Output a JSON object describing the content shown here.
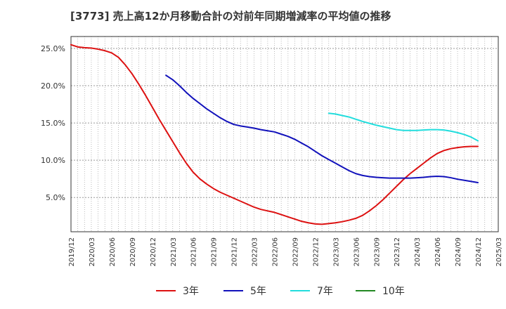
{
  "chart_data": {
    "type": "line",
    "title": "[3773]  売上高12か月移動合計の対前年同期増減率の平均値の推移",
    "xlabel": "",
    "ylabel": "",
    "x_ticks": [
      "2019/12",
      "2020/03",
      "2020/06",
      "2020/09",
      "2020/12",
      "2021/03",
      "2021/06",
      "2021/09",
      "2021/12",
      "2022/03",
      "2022/06",
      "2022/09",
      "2022/12",
      "2023/03",
      "2023/06",
      "2023/09",
      "2023/12",
      "2024/03",
      "2024/06",
      "2024/09",
      "2024/12",
      "2025/03"
    ],
    "y_ticks": [
      "5.0%",
      "10.0%",
      "15.0%",
      "20.0%",
      "25.0%"
    ],
    "y_tick_values": [
      5,
      10,
      15,
      20,
      25
    ],
    "ylim": [
      0.4,
      26.6
    ],
    "xlim": [
      "2019/12",
      "2025/03"
    ],
    "grid": true,
    "legend_position": "bottom",
    "series": [
      {
        "name": "3年",
        "color": "#dd1111",
        "points": [
          [
            "2019/12",
            25.5
          ],
          [
            "2020/01",
            25.2
          ],
          [
            "2020/02",
            25.1
          ],
          [
            "2020/03",
            25.05
          ],
          [
            "2020/04",
            24.9
          ],
          [
            "2020/05",
            24.7
          ],
          [
            "2020/06",
            24.4
          ],
          [
            "2020/07",
            23.8
          ],
          [
            "2020/08",
            22.8
          ],
          [
            "2020/09",
            21.6
          ],
          [
            "2020/10",
            20.2
          ],
          [
            "2020/11",
            18.7
          ],
          [
            "2020/12",
            17.1
          ],
          [
            "2021/01",
            15.5
          ],
          [
            "2021/02",
            14.0
          ],
          [
            "2021/03",
            12.5
          ],
          [
            "2021/04",
            11.0
          ],
          [
            "2021/05",
            9.6
          ],
          [
            "2021/06",
            8.4
          ],
          [
            "2021/07",
            7.5
          ],
          [
            "2021/08",
            6.8
          ],
          [
            "2021/09",
            6.2
          ],
          [
            "2021/10",
            5.7
          ],
          [
            "2021/11",
            5.3
          ],
          [
            "2021/12",
            4.9
          ],
          [
            "2022/01",
            4.5
          ],
          [
            "2022/02",
            4.1
          ],
          [
            "2022/03",
            3.7
          ],
          [
            "2022/04",
            3.4
          ],
          [
            "2022/05",
            3.2
          ],
          [
            "2022/06",
            3.0
          ],
          [
            "2022/07",
            2.7
          ],
          [
            "2022/08",
            2.4
          ],
          [
            "2022/09",
            2.1
          ],
          [
            "2022/10",
            1.8
          ],
          [
            "2022/11",
            1.6
          ],
          [
            "2022/12",
            1.45
          ],
          [
            "2023/01",
            1.4
          ],
          [
            "2023/02",
            1.5
          ],
          [
            "2023/03",
            1.6
          ],
          [
            "2023/04",
            1.75
          ],
          [
            "2023/05",
            1.95
          ],
          [
            "2023/06",
            2.2
          ],
          [
            "2023/07",
            2.6
          ],
          [
            "2023/08",
            3.2
          ],
          [
            "2023/09",
            3.9
          ],
          [
            "2023/10",
            4.7
          ],
          [
            "2023/11",
            5.6
          ],
          [
            "2023/12",
            6.5
          ],
          [
            "2024/01",
            7.4
          ],
          [
            "2024/02",
            8.2
          ],
          [
            "2024/03",
            8.9
          ],
          [
            "2024/04",
            9.6
          ],
          [
            "2024/05",
            10.3
          ],
          [
            "2024/06",
            10.9
          ],
          [
            "2024/07",
            11.3
          ],
          [
            "2024/08",
            11.55
          ],
          [
            "2024/09",
            11.7
          ],
          [
            "2024/10",
            11.8
          ],
          [
            "2024/11",
            11.85
          ],
          [
            "2024/12",
            11.85
          ]
        ]
      },
      {
        "name": "5年",
        "color": "#1111bb",
        "points": [
          [
            "2021/02",
            21.4
          ],
          [
            "2021/03",
            20.8
          ],
          [
            "2021/04",
            20.0
          ],
          [
            "2021/05",
            19.1
          ],
          [
            "2021/06",
            18.3
          ],
          [
            "2021/07",
            17.6
          ],
          [
            "2021/08",
            16.9
          ],
          [
            "2021/09",
            16.3
          ],
          [
            "2021/10",
            15.7
          ],
          [
            "2021/11",
            15.2
          ],
          [
            "2021/12",
            14.8
          ],
          [
            "2022/01",
            14.6
          ],
          [
            "2022/02",
            14.45
          ],
          [
            "2022/03",
            14.3
          ],
          [
            "2022/04",
            14.1
          ],
          [
            "2022/05",
            13.95
          ],
          [
            "2022/06",
            13.8
          ],
          [
            "2022/07",
            13.5
          ],
          [
            "2022/08",
            13.2
          ],
          [
            "2022/09",
            12.8
          ],
          [
            "2022/10",
            12.3
          ],
          [
            "2022/11",
            11.8
          ],
          [
            "2022/12",
            11.2
          ],
          [
            "2023/01",
            10.6
          ],
          [
            "2023/02",
            10.1
          ],
          [
            "2023/03",
            9.6
          ],
          [
            "2023/04",
            9.1
          ],
          [
            "2023/05",
            8.6
          ],
          [
            "2023/06",
            8.2
          ],
          [
            "2023/07",
            7.95
          ],
          [
            "2023/08",
            7.8
          ],
          [
            "2023/09",
            7.7
          ],
          [
            "2023/10",
            7.65
          ],
          [
            "2023/11",
            7.6
          ],
          [
            "2023/12",
            7.6
          ],
          [
            "2024/01",
            7.6
          ],
          [
            "2024/02",
            7.6
          ],
          [
            "2024/03",
            7.65
          ],
          [
            "2024/04",
            7.7
          ],
          [
            "2024/05",
            7.8
          ],
          [
            "2024/06",
            7.85
          ],
          [
            "2024/07",
            7.8
          ],
          [
            "2024/08",
            7.65
          ],
          [
            "2024/09",
            7.45
          ],
          [
            "2024/10",
            7.3
          ],
          [
            "2024/11",
            7.15
          ],
          [
            "2024/12",
            7.0
          ]
        ]
      },
      {
        "name": "7年",
        "color": "#22dddd",
        "points": [
          [
            "2023/02",
            16.3
          ],
          [
            "2023/03",
            16.2
          ],
          [
            "2023/04",
            16.0
          ],
          [
            "2023/05",
            15.8
          ],
          [
            "2023/06",
            15.5
          ],
          [
            "2023/07",
            15.2
          ],
          [
            "2023/08",
            14.95
          ],
          [
            "2023/09",
            14.7
          ],
          [
            "2023/10",
            14.5
          ],
          [
            "2023/11",
            14.3
          ],
          [
            "2023/12",
            14.1
          ],
          [
            "2024/01",
            14.0
          ],
          [
            "2024/02",
            14.0
          ],
          [
            "2024/03",
            14.0
          ],
          [
            "2024/04",
            14.05
          ],
          [
            "2024/05",
            14.1
          ],
          [
            "2024/06",
            14.1
          ],
          [
            "2024/07",
            14.05
          ],
          [
            "2024/08",
            13.9
          ],
          [
            "2024/09",
            13.7
          ],
          [
            "2024/10",
            13.45
          ],
          [
            "2024/11",
            13.1
          ],
          [
            "2024/12",
            12.6
          ]
        ]
      },
      {
        "name": "10年",
        "color": "#228822",
        "points": []
      }
    ]
  }
}
